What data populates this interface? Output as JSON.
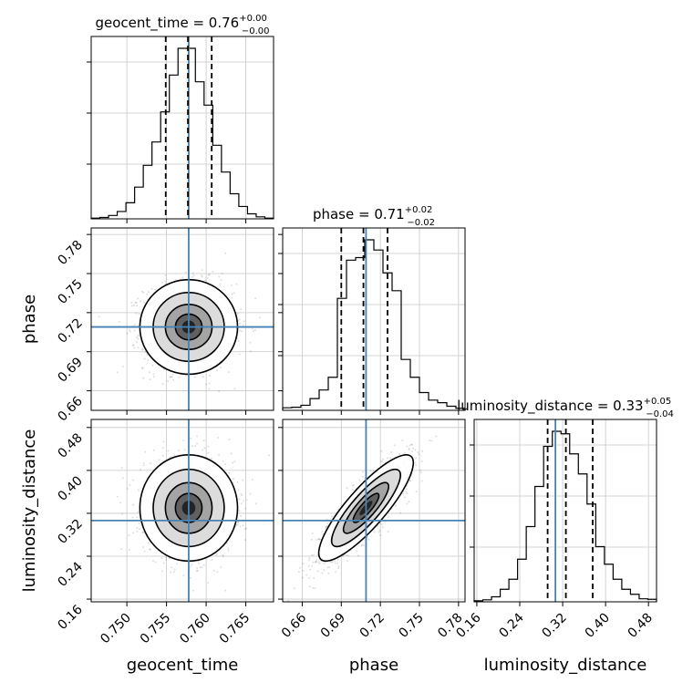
{
  "chart_data": {
    "type": "corner",
    "parameters": [
      {
        "name": "geocent_time",
        "title": {
          "text": "geocent_time = 0.76",
          "sup": "+0.00",
          "sub": "−0.00"
        },
        "range": [
          0.7455,
          0.7685
        ],
        "ticks": [
          0.75,
          0.755,
          0.76,
          0.765
        ],
        "tick_labels": [
          "0.750",
          "0.755",
          "0.760",
          "0.765"
        ],
        "truth": 0.7578,
        "quantiles": [
          0.7549,
          0.7577,
          0.7607
        ],
        "hist": [
          0.2,
          0.4,
          1.0,
          2.2,
          4.8,
          9.5,
          16.0,
          23.0,
          32.0,
          43.0,
          51.0,
          51.0,
          41.0,
          34.0,
          22.0,
          14.0,
          7.5,
          3.7,
          1.5,
          0.6,
          0.2
        ]
      },
      {
        "name": "phase",
        "title": {
          "text": "phase = 0.71",
          "sup": "+0.02",
          "sub": "−0.02"
        },
        "range": [
          0.645,
          0.785
        ],
        "ticks": [
          0.66,
          0.69,
          0.72,
          0.75,
          0.78
        ],
        "tick_labels": [
          "0.66",
          "0.69",
          "0.72",
          "0.75",
          "0.78"
        ],
        "truth": 0.709,
        "quantiles": [
          0.69,
          0.707,
          0.7255
        ],
        "hist": [
          0.5,
          0.6,
          1.0,
          2.3,
          4.0,
          6.5,
          22.0,
          29.5,
          30.0,
          33.5,
          31.5,
          27.0,
          23.5,
          10.0,
          6.5,
          3.5,
          2.0,
          1.5,
          0.8,
          0.4
        ]
      },
      {
        "name": "luminosity_distance",
        "title": {
          "text": "luminosity_distance = 0.33",
          "sup": "+0.05",
          "sub": "−0.04"
        },
        "range": [
          0.155,
          0.495
        ],
        "ticks": [
          0.16,
          0.24,
          0.32,
          0.4,
          0.48
        ],
        "tick_labels": [
          "0.16",
          "0.24",
          "0.32",
          "0.40",
          "0.48"
        ],
        "truth": 0.3065,
        "quantiles": [
          0.292,
          0.326,
          0.376
        ],
        "hist": [
          0.2,
          0.4,
          1.0,
          2.5,
          4.5,
          8.5,
          15.0,
          23.0,
          31.0,
          34.0,
          33.5,
          29.5,
          25.5,
          19.5,
          11.0,
          7.5,
          4.5,
          2.5,
          1.5,
          0.6,
          0.5
        ]
      }
    ],
    "correlations": {
      "geocent_time-phase": 0.0,
      "geocent_time-luminosity_distance": 0.0,
      "phase-luminosity_distance": 0.85
    },
    "grid": true
  }
}
